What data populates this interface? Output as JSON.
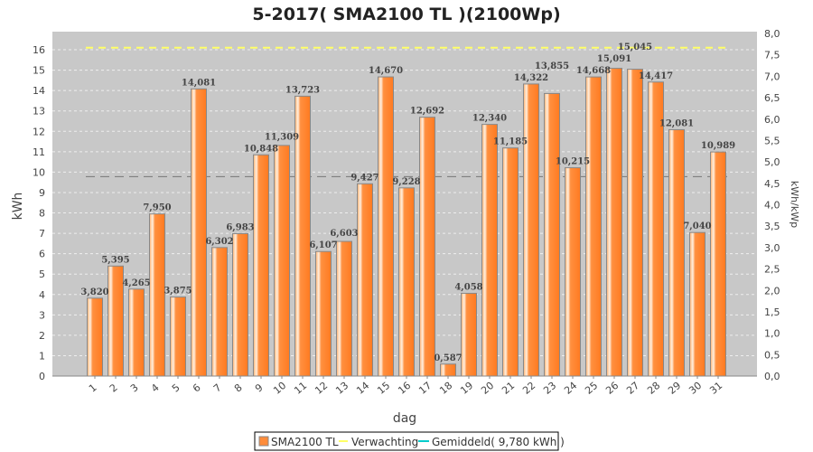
{
  "chart_data": {
    "type": "bar",
    "title": "5-2017( SMA2100 TL )(2100Wp)",
    "xlabel": "dag",
    "ylabel": "kWh",
    "y2label": "kWh/kWp",
    "ylim": [
      0,
      16.8
    ],
    "y2lim": [
      0,
      8.0
    ],
    "categories": [
      "1",
      "2",
      "3",
      "4",
      "5",
      "6",
      "7",
      "8",
      "9",
      "10",
      "11",
      "12",
      "13",
      "14",
      "15",
      "16",
      "17",
      "18",
      "19",
      "20",
      "21",
      "22",
      "23",
      "24",
      "25",
      "26",
      "27",
      "28",
      "29",
      "30",
      "31"
    ],
    "series": [
      {
        "name": "SMA2100 TL",
        "color": "#ff8c3a",
        "values": [
          3.82,
          5.395,
          4.265,
          7.95,
          3.875,
          14.081,
          6.302,
          6.983,
          10.848,
          11.309,
          13.723,
          6.107,
          6.603,
          9.427,
          14.67,
          9.228,
          12.692,
          0.587,
          4.058,
          12.34,
          11.185,
          14.322,
          13.855,
          10.215,
          14.668,
          15.091,
          15.045,
          14.417,
          12.081,
          7.04,
          10.989
        ]
      }
    ],
    "data_labels": [
      "3,820",
      "5,395",
      "4,265",
      "7,950",
      "3,875",
      "14,081",
      "6,302",
      "6,983",
      "10,848",
      "11,309",
      "13,723",
      "6,107",
      "6,603",
      "9,427",
      "14,670",
      "9,228",
      "12,692",
      "0,587",
      "4,058",
      "12,340",
      "11,185",
      "14,322",
      "13,855",
      "10,215",
      "14,668",
      "15,091",
      "15,045",
      "14,417",
      "12,081",
      "7,040",
      "10,989"
    ],
    "expectation": {
      "name": "Verwachting",
      "value": 16.1,
      "color": "#ffff66"
    },
    "average": {
      "name": "Gemiddeld( 9,780 kWh )",
      "value": 9.78,
      "color": "#00cccc"
    },
    "yticks": [
      0,
      1,
      2,
      3,
      4,
      5,
      6,
      7,
      8,
      9,
      10,
      11,
      12,
      13,
      14,
      15,
      16
    ],
    "y2ticks": [
      "0,0",
      "0,5",
      "1,0",
      "1,5",
      "2,0",
      "2,5",
      "3,0",
      "3,5",
      "4,0",
      "4,5",
      "5,0",
      "5,5",
      "6,0",
      "6,5",
      "7,0",
      "7,5",
      "8,0"
    ],
    "legend_position": "bottom",
    "grid": true
  }
}
